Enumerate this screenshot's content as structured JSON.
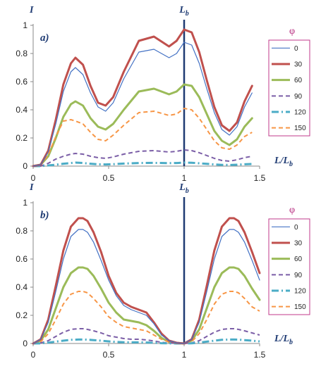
{
  "chart_data": [
    {
      "type": "line",
      "panel_label": "a)",
      "ylabel": "I",
      "xlabel": "L/L",
      "xlabel_sub": "b",
      "marker_label": "L",
      "marker_label_sub": "b",
      "marker_x": 1.0,
      "xlim": [
        0,
        1.5
      ],
      "ylim": [
        0,
        1
      ],
      "x_ticks": [
        "0",
        "0.5",
        "1",
        "1.5"
      ],
      "y_ticks": [
        "0",
        "0.2",
        "0.4",
        "0.6",
        "0.8",
        "1"
      ],
      "legend_title": "φ",
      "legend_position": "right",
      "grid": false,
      "x": [
        0,
        0.05,
        0.1,
        0.15,
        0.2,
        0.25,
        0.28,
        0.33,
        0.38,
        0.43,
        0.48,
        0.53,
        0.6,
        0.7,
        0.8,
        0.9,
        0.95,
        1.0,
        1.05,
        1.1,
        1.15,
        1.2,
        1.25,
        1.3,
        1.35,
        1.4,
        1.45
      ],
      "series": [
        {
          "name": "0",
          "color": "#4472c4",
          "dash": "",
          "width": 1.2,
          "values": [
            0,
            0.01,
            0.1,
            0.3,
            0.53,
            0.67,
            0.7,
            0.65,
            0.52,
            0.42,
            0.39,
            0.45,
            0.62,
            0.81,
            0.83,
            0.77,
            0.8,
            0.88,
            0.86,
            0.73,
            0.55,
            0.38,
            0.26,
            0.22,
            0.28,
            0.42,
            0.52
          ]
        },
        {
          "name": "30",
          "color": "#c0504d",
          "dash": "",
          "width": 3,
          "values": [
            0,
            0.01,
            0.11,
            0.33,
            0.58,
            0.73,
            0.77,
            0.72,
            0.57,
            0.45,
            0.43,
            0.49,
            0.67,
            0.89,
            0.92,
            0.85,
            0.89,
            0.97,
            0.95,
            0.81,
            0.61,
            0.42,
            0.29,
            0.25,
            0.31,
            0.46,
            0.57
          ]
        },
        {
          "name": "60",
          "color": "#9bbb59",
          "dash": "",
          "width": 3,
          "values": [
            0,
            0.01,
            0.07,
            0.2,
            0.35,
            0.44,
            0.46,
            0.43,
            0.34,
            0.28,
            0.26,
            0.3,
            0.4,
            0.53,
            0.55,
            0.51,
            0.53,
            0.58,
            0.57,
            0.49,
            0.37,
            0.25,
            0.18,
            0.15,
            0.19,
            0.28,
            0.34
          ]
        },
        {
          "name": "90",
          "color": "#7b5ea7",
          "dash": "6,4",
          "width": 2,
          "values": [
            0,
            0.0,
            0.02,
            0.05,
            0.07,
            0.085,
            0.09,
            0.085,
            0.07,
            0.06,
            0.055,
            0.065,
            0.085,
            0.105,
            0.11,
            0.1,
            0.105,
            0.115,
            0.11,
            0.095,
            0.075,
            0.055,
            0.04,
            0.035,
            0.045,
            0.06,
            0.07
          ]
        },
        {
          "name": "120",
          "color": "#4bacc6",
          "dash": "10,4,2,4",
          "width": 3,
          "values": [
            0,
            0.0,
            0.005,
            0.01,
            0.017,
            0.022,
            0.025,
            0.022,
            0.017,
            0.013,
            0.012,
            0.014,
            0.018,
            0.022,
            0.023,
            0.021,
            0.022,
            0.025,
            0.024,
            0.02,
            0.016,
            0.012,
            0.009,
            0.008,
            0.01,
            0.013,
            0.015
          ]
        },
        {
          "name": "150",
          "color": "#f79646",
          "dash": "6,4",
          "width": 2,
          "values": [
            0,
            0.01,
            0.08,
            0.21,
            0.32,
            0.33,
            0.32,
            0.3,
            0.24,
            0.19,
            0.18,
            0.22,
            0.29,
            0.38,
            0.39,
            0.36,
            0.37,
            0.41,
            0.4,
            0.34,
            0.26,
            0.18,
            0.13,
            0.12,
            0.15,
            0.21,
            0.24
          ]
        }
      ]
    },
    {
      "type": "line",
      "panel_label": "b)",
      "ylabel": "I",
      "xlabel": "L/L",
      "xlabel_sub": "b",
      "marker_label": "L",
      "marker_label_sub": "b",
      "marker_x": 1.0,
      "xlim": [
        0,
        1.5
      ],
      "ylim": [
        0,
        1
      ],
      "x_ticks": [
        "0",
        "0.5",
        "1",
        "1.5"
      ],
      "y_ticks": [
        "0",
        "0.2",
        "0.4",
        "0.6",
        "0.8",
        "1"
      ],
      "legend_title": "φ",
      "legend_position": "right",
      "grid": false,
      "x": [
        0,
        0.05,
        0.1,
        0.15,
        0.2,
        0.25,
        0.3,
        0.33,
        0.36,
        0.4,
        0.45,
        0.5,
        0.55,
        0.6,
        0.65,
        0.7,
        0.75,
        0.8,
        0.85,
        0.9,
        0.95,
        1.0,
        1.05,
        1.1,
        1.15,
        1.2,
        1.25,
        1.3,
        1.33,
        1.36,
        1.4,
        1.45,
        1.5
      ],
      "series": [
        {
          "name": "0",
          "color": "#4472c4",
          "dash": "",
          "width": 1.2,
          "values": [
            0,
            0.03,
            0.15,
            0.37,
            0.6,
            0.76,
            0.81,
            0.81,
            0.79,
            0.72,
            0.59,
            0.45,
            0.34,
            0.27,
            0.24,
            0.22,
            0.2,
            0.14,
            0.06,
            0.02,
            0.005,
            0,
            0.03,
            0.15,
            0.37,
            0.6,
            0.76,
            0.81,
            0.81,
            0.79,
            0.72,
            0.59,
            0.45
          ]
        },
        {
          "name": "30",
          "color": "#c0504d",
          "dash": "",
          "width": 3,
          "values": [
            0,
            0.03,
            0.17,
            0.41,
            0.66,
            0.83,
            0.89,
            0.89,
            0.87,
            0.79,
            0.65,
            0.48,
            0.36,
            0.29,
            0.26,
            0.24,
            0.22,
            0.15,
            0.07,
            0.02,
            0.005,
            0,
            0.03,
            0.17,
            0.41,
            0.66,
            0.83,
            0.89,
            0.89,
            0.87,
            0.79,
            0.65,
            0.5
          ]
        },
        {
          "name": "60",
          "color": "#9bbb59",
          "dash": "",
          "width": 3,
          "values": [
            0,
            0.02,
            0.1,
            0.25,
            0.4,
            0.5,
            0.54,
            0.54,
            0.53,
            0.48,
            0.39,
            0.29,
            0.22,
            0.17,
            0.16,
            0.15,
            0.13,
            0.09,
            0.04,
            0.01,
            0.003,
            0,
            0.02,
            0.1,
            0.25,
            0.4,
            0.5,
            0.54,
            0.54,
            0.53,
            0.48,
            0.39,
            0.31
          ]
        },
        {
          "name": "90",
          "color": "#7b5ea7",
          "dash": "6,4",
          "width": 2,
          "values": [
            0,
            0.004,
            0.02,
            0.05,
            0.08,
            0.1,
            0.105,
            0.105,
            0.1,
            0.09,
            0.075,
            0.055,
            0.045,
            0.035,
            0.03,
            0.03,
            0.025,
            0.018,
            0.008,
            0.003,
            0.001,
            0,
            0.004,
            0.02,
            0.05,
            0.08,
            0.1,
            0.105,
            0.105,
            0.1,
            0.09,
            0.075,
            0.06
          ]
        },
        {
          "name": "120",
          "color": "#4bacc6",
          "dash": "10,4,2,4",
          "width": 3,
          "values": [
            0,
            0.001,
            0.006,
            0.013,
            0.02,
            0.026,
            0.028,
            0.028,
            0.027,
            0.024,
            0.02,
            0.015,
            0.011,
            0.009,
            0.008,
            0.008,
            0.007,
            0.005,
            0.002,
            0.001,
            0,
            0,
            0.001,
            0.006,
            0.013,
            0.02,
            0.026,
            0.028,
            0.028,
            0.027,
            0.024,
            0.02,
            0.015
          ]
        },
        {
          "name": "150",
          "color": "#f79646",
          "dash": "6,4",
          "width": 2,
          "values": [
            0,
            0.012,
            0.07,
            0.17,
            0.28,
            0.35,
            0.37,
            0.37,
            0.36,
            0.32,
            0.26,
            0.19,
            0.15,
            0.12,
            0.11,
            0.1,
            0.09,
            0.06,
            0.03,
            0.01,
            0.002,
            0,
            0.012,
            0.07,
            0.17,
            0.28,
            0.35,
            0.37,
            0.37,
            0.36,
            0.32,
            0.26,
            0.23
          ]
        }
      ]
    }
  ]
}
